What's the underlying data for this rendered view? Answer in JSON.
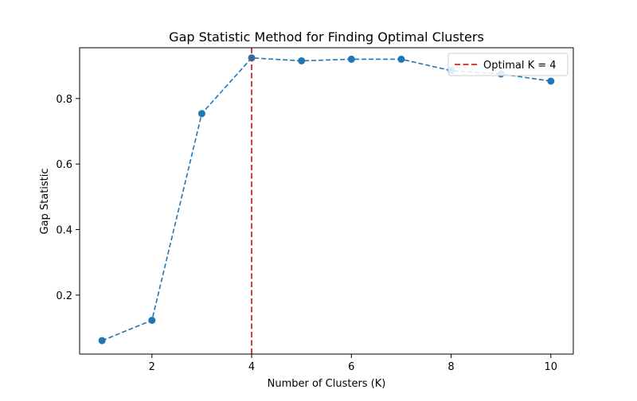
{
  "chart_data": {
    "type": "line",
    "title": "Gap Statistic Method for Finding Optimal Clusters",
    "xlabel": "Number of Clusters (K)",
    "ylabel": "Gap Statistic",
    "xlim": [
      0.55,
      10.45
    ],
    "ylim": [
      0.02,
      0.955
    ],
    "xticks": [
      2,
      4,
      6,
      8,
      10
    ],
    "yticks": [
      0.2,
      0.4,
      0.6,
      0.8
    ],
    "grid": false,
    "legend_position": "upper-right",
    "series": [
      {
        "x": [
          1,
          2,
          3,
          4,
          5,
          6,
          7,
          8,
          9,
          10
        ],
        "values": [
          0.061,
          0.123,
          0.754,
          0.924,
          0.915,
          0.92,
          0.92,
          0.885,
          0.875,
          0.853
        ],
        "color": "#1f77b4",
        "linestyle": "dashed",
        "marker": "circle"
      }
    ],
    "annotations": [
      {
        "type": "vline",
        "x": 4,
        "color": "#d62728",
        "linestyle": "dashed",
        "label": "Optimal K = 4"
      }
    ]
  }
}
